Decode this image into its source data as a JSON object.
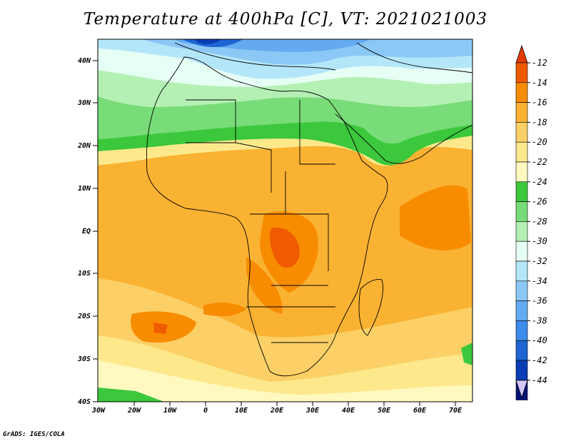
{
  "title": "Temperature at 400hPa [C], VT: 2021021003",
  "credit": "GrADS: IGES/COLA",
  "lat_labels": [
    "40N",
    "30N",
    "20N",
    "10N",
    "EQ",
    "10S",
    "20S",
    "30S",
    "40S"
  ],
  "lon_labels": [
    "30W",
    "20W",
    "10W",
    "0",
    "10E",
    "20E",
    "30E",
    "40E",
    "50E",
    "60E",
    "70E"
  ],
  "colorbar": {
    "labels": [
      "-12",
      "-14",
      "-16",
      "-18",
      "-20",
      "-22",
      "-24",
      "-26",
      "-28",
      "-30",
      "-32",
      "-34",
      "-36",
      "-38",
      "-40",
      "-42",
      "-44"
    ],
    "colors": [
      "#f05a00",
      "#f88c00",
      "#fab232",
      "#fcd066",
      "#fde98c",
      "#fff9c0",
      "#3cc83c",
      "#78dc78",
      "#b4f0b4",
      "#e6fff5",
      "#b4e6fa",
      "#8cc8f5",
      "#64aaf0",
      "#3c8ceb",
      "#1e64d2",
      "#0a3cb4",
      "#001478"
    ],
    "over_color": "#e63c00",
    "under_color": "#d2c8fa"
  }
}
